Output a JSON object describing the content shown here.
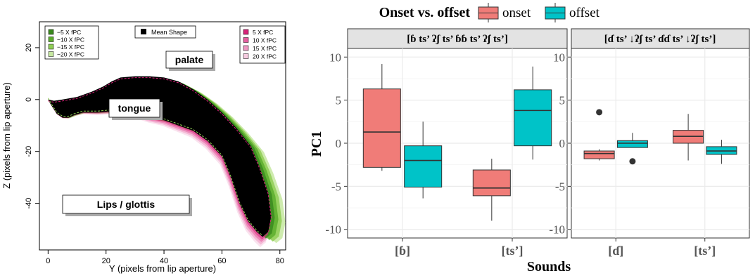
{
  "chart_data": [
    {
      "type": "area",
      "xlabel": "Y (pixels from lip aperture)",
      "ylabel": "Z (pixels from lip aperture)",
      "xlim": [
        -3,
        82
      ],
      "ylim": [
        -58,
        30
      ],
      "x_ticks": [
        0,
        20,
        40,
        60,
        80
      ],
      "y_ticks": [
        20,
        0,
        -20,
        -40
      ],
      "legend_left": [
        {
          "label": "−5 X fPC",
          "color": "#3a8a1e"
        },
        {
          "label": "−10 X fPC",
          "color": "#5cae2e"
        },
        {
          "label": "−15 X fPC",
          "color": "#8fce55"
        },
        {
          "label": "−20 X fPC",
          "color": "#c6e8a0"
        }
      ],
      "legend_center": {
        "label": "Mean Shape",
        "color": "#000000"
      },
      "legend_right": [
        {
          "label": "5 X fPC",
          "color": "#d8247a"
        },
        {
          "label": "10 X fPC",
          "color": "#e55ea0"
        },
        {
          "label": "15 X fPC",
          "color": "#ee97c2"
        },
        {
          "label": "20 X fPC",
          "color": "#f6cbe0"
        }
      ],
      "annotations": {
        "palate": "palate",
        "tongue": "tongue",
        "lips": "Lips / glottis"
      },
      "upper_contour": [
        [
          0,
          0
        ],
        [
          2,
          -0.5
        ],
        [
          5,
          0
        ],
        [
          10,
          1
        ],
        [
          15,
          3
        ],
        [
          19,
          5
        ],
        [
          22,
          7
        ],
        [
          25,
          8.5
        ],
        [
          30,
          9
        ],
        [
          35,
          9
        ],
        [
          40,
          8.5
        ],
        [
          45,
          7
        ],
        [
          50,
          4
        ],
        [
          55,
          0
        ],
        [
          60,
          -5
        ],
        [
          65,
          -11
        ],
        [
          70,
          -18
        ],
        [
          73,
          -26
        ],
        [
          76,
          -36
        ],
        [
          77,
          -45
        ],
        [
          76,
          -51
        ],
        [
          74,
          -53
        ]
      ],
      "lower_contour": [
        [
          0,
          0
        ],
        [
          1,
          -2
        ],
        [
          3,
          -5.5
        ],
        [
          5,
          -7
        ],
        [
          7,
          -7
        ],
        [
          9,
          -6
        ],
        [
          12,
          -5
        ],
        [
          17,
          -5
        ],
        [
          22,
          -4.5
        ],
        [
          30,
          -5.5
        ],
        [
          35,
          -7
        ],
        [
          40,
          -8
        ],
        [
          45,
          -10
        ],
        [
          50,
          -12
        ],
        [
          55,
          -16
        ],
        [
          60,
          -22
        ],
        [
          63,
          -30
        ],
        [
          66,
          -40
        ],
        [
          69,
          -47
        ],
        [
          72,
          -51
        ],
        [
          74,
          -53
        ]
      ]
    },
    {
      "type": "boxplot",
      "title": "Onset vs. offset",
      "legend": [
        {
          "name": "onset",
          "color": "#f07c78"
        },
        {
          "name": "offset",
          "color": "#00c3c8"
        }
      ],
      "ylabel": "PC1",
      "xlabel": "Sounds",
      "ylim": [
        -11,
        11
      ],
      "y_ticks": [
        10,
        5,
        0,
        -5,
        -10
      ],
      "panels": [
        {
          "strip": "[ɓ ts’ ʔʃ ts’ ɓɓ ts’ ʔʃ ts’]",
          "categories": [
            "[ɓ]",
            "[ts’]"
          ],
          "boxes": [
            {
              "category": 0,
              "group": "onset",
              "min": -3.2,
              "q1": -2.8,
              "median": 1.3,
              "q3": 6.3,
              "max": 9.2,
              "outliers": []
            },
            {
              "category": 0,
              "group": "offset",
              "min": -6.4,
              "q1": -5.1,
              "median": -2.0,
              "q3": -0.3,
              "max": 2.5,
              "outliers": []
            },
            {
              "category": 1,
              "group": "onset",
              "min": -9.0,
              "q1": -6.1,
              "median": -5.2,
              "q3": -3.1,
              "max": -1.8,
              "outliers": []
            },
            {
              "category": 1,
              "group": "offset",
              "min": -1.9,
              "q1": -0.3,
              "median": 3.8,
              "q3": 6.2,
              "max": 8.9,
              "outliers": []
            }
          ]
        },
        {
          "strip": "[ɗ ts’ ↓ʔʃ ts’ ɗɗ ts’ ↓ʔʃ ts’]",
          "categories": [
            "[ɗ]",
            "[ts’]"
          ],
          "boxes": [
            {
              "category": 0,
              "group": "onset",
              "min": -2.0,
              "q1": -1.8,
              "median": -1.2,
              "q3": -0.9,
              "max": -0.7,
              "outliers": [
                3.6
              ]
            },
            {
              "category": 0,
              "group": "offset",
              "min": -0.5,
              "q1": -0.5,
              "median": 0.0,
              "q3": 0.3,
              "max": 1.2,
              "outliers": [
                -2.1
              ]
            },
            {
              "category": 1,
              "group": "onset",
              "min": -2.0,
              "q1": 0.0,
              "median": 0.8,
              "q3": 1.5,
              "max": 3.4,
              "outliers": []
            },
            {
              "category": 1,
              "group": "offset",
              "min": -2.4,
              "q1": -1.3,
              "median": -0.9,
              "q3": -0.4,
              "max": 0.4,
              "outliers": []
            }
          ]
        }
      ]
    }
  ]
}
